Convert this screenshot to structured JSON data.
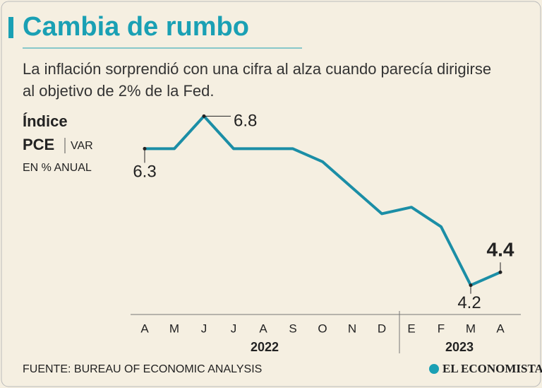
{
  "chart_data": {
    "type": "line",
    "title": "Cambia de rumbo",
    "subtitle": "La inflación sorprendió con una cifra al alza cuando parecía dirigirse al objetivo de 2% de la Fed.",
    "y_label": [
      "Índice",
      "PCE",
      "VAR",
      "EN % ANUAL"
    ],
    "categories": [
      "A",
      "M",
      "J",
      "J",
      "A",
      "S",
      "O",
      "N",
      "D",
      "E",
      "F",
      "M",
      "A"
    ],
    "values": [
      6.3,
      6.3,
      6.8,
      6.3,
      6.3,
      6.3,
      6.1,
      5.7,
      5.3,
      5.4,
      5.1,
      4.2,
      4.4
    ],
    "year_labels": [
      "2022",
      "2023"
    ],
    "color": "#1b8ea6",
    "ylim": [
      3.75,
      7.0
    ],
    "grid": false,
    "source": "FUENTE: BUREAU OF ECONOMIC ANALYSIS",
    "brand": "EL ECONOMISTA"
  }
}
